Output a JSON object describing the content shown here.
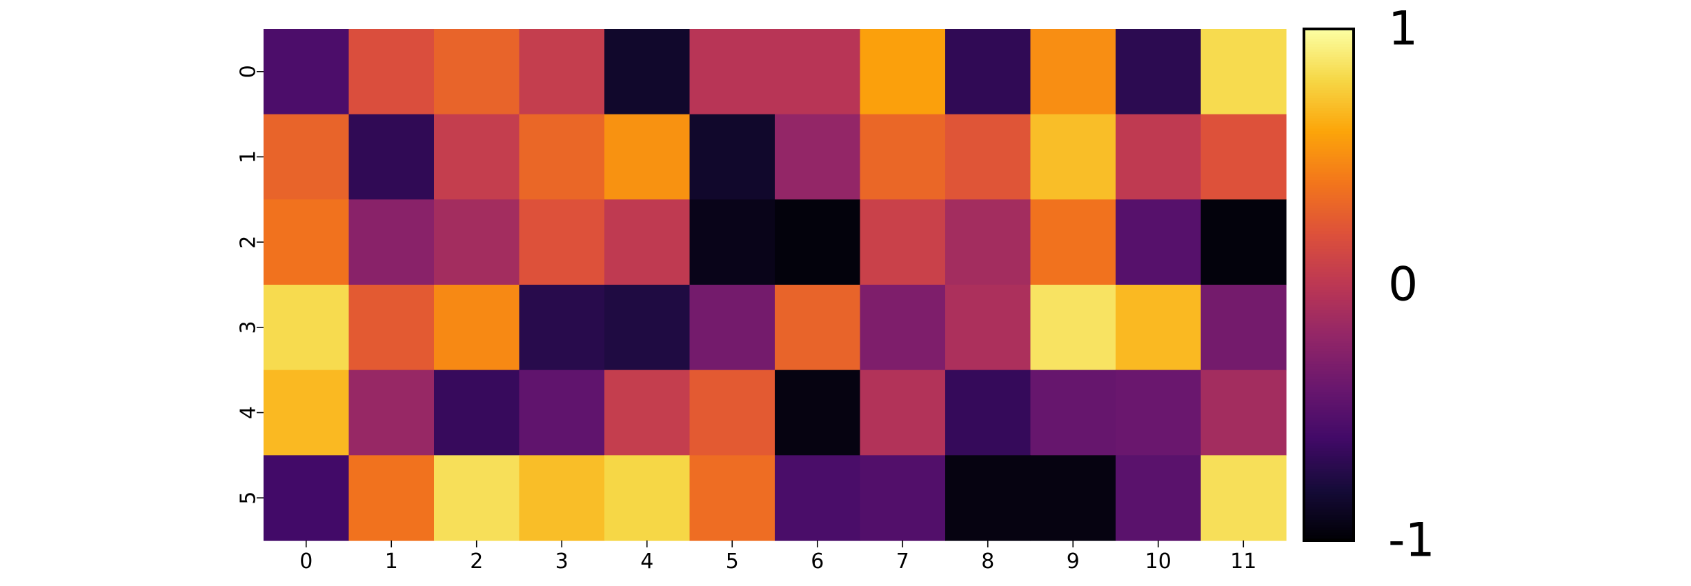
{
  "chart_data": {
    "type": "heatmap",
    "colormap": "inferno",
    "vmin": -1,
    "vmax": 1,
    "x_labels": [
      "0",
      "1",
      "2",
      "3",
      "4",
      "5",
      "6",
      "7",
      "8",
      "9",
      "10",
      "11"
    ],
    "y_labels": [
      "0",
      "1",
      "2",
      "3",
      "4",
      "5"
    ],
    "values": [
      [
        -0.55,
        0.18,
        0.3,
        0.05,
        -0.85,
        -0.02,
        -0.02,
        0.58,
        -0.68,
        0.5,
        -0.7,
        0.82
      ],
      [
        0.3,
        -0.68,
        0.05,
        0.32,
        0.52,
        -0.85,
        -0.2,
        0.32,
        0.22,
        0.7,
        0.02,
        0.2
      ],
      [
        0.38,
        -0.25,
        -0.12,
        0.2,
        0.02,
        -0.92,
        -0.97,
        0.08,
        -0.12,
        0.38,
        -0.5,
        -0.97
      ],
      [
        0.82,
        0.25,
        0.48,
        -0.72,
        -0.76,
        -0.35,
        0.3,
        -0.3,
        -0.08,
        0.86,
        0.68,
        -0.35
      ],
      [
        0.68,
        -0.18,
        -0.65,
        -0.45,
        0.05,
        0.25,
        -0.95,
        -0.05,
        -0.66,
        -0.42,
        -0.4,
        -0.12
      ],
      [
        -0.6,
        0.38,
        0.84,
        0.7,
        0.8,
        0.35,
        -0.56,
        -0.52,
        -0.95,
        -0.95,
        -0.48,
        0.84
      ]
    ],
    "colorbar": {
      "ticks": [
        1,
        0,
        -1
      ],
      "tick_labels": [
        "1",
        "0",
        "-1"
      ]
    }
  }
}
